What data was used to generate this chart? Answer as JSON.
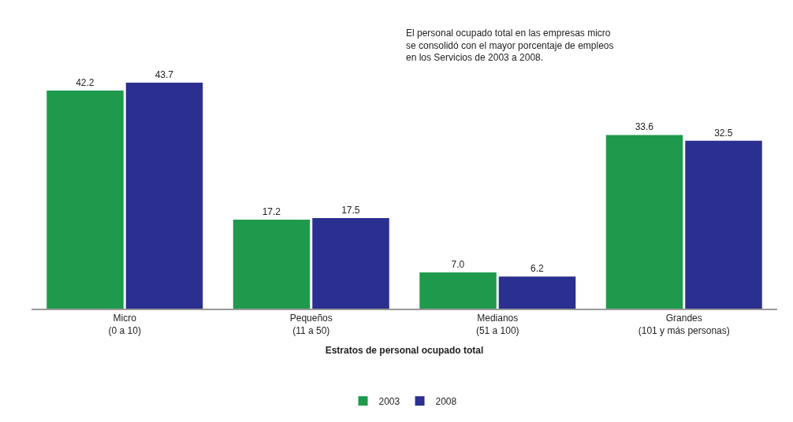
{
  "chart_data": {
    "type": "bar",
    "categories": [
      "Micro\n(0 a 10)",
      "Pequeños\n(11 a 50)",
      "Medianos\n(51 a 100)",
      "Grandes\n(101 y más personas)"
    ],
    "xlabel": "Estratos de personal ocupado total",
    "annotations": [
      "El personal ocupado total en las empresas micro\nse consolidó con el mayor porcentaje de empleos\nen los Servicios de 2003 a 2008."
    ],
    "series": [
      {
        "name": "2003",
        "color": "#1f9a4c",
        "values": [
          42.2,
          17.2,
          7.0,
          33.6
        ],
        "value_labels": [
          "42.2",
          "17.2",
          "7.0",
          "33.6"
        ]
      },
      {
        "name": "2008",
        "color": "#2b2f8f",
        "values": [
          43.7,
          17.5,
          6.2,
          32.5
        ],
        "value_labels": [
          "43.7",
          "17.5",
          "6.2",
          "32.5"
        ]
      }
    ],
    "tick_labels": "x",
    "legend": "bottom"
  }
}
